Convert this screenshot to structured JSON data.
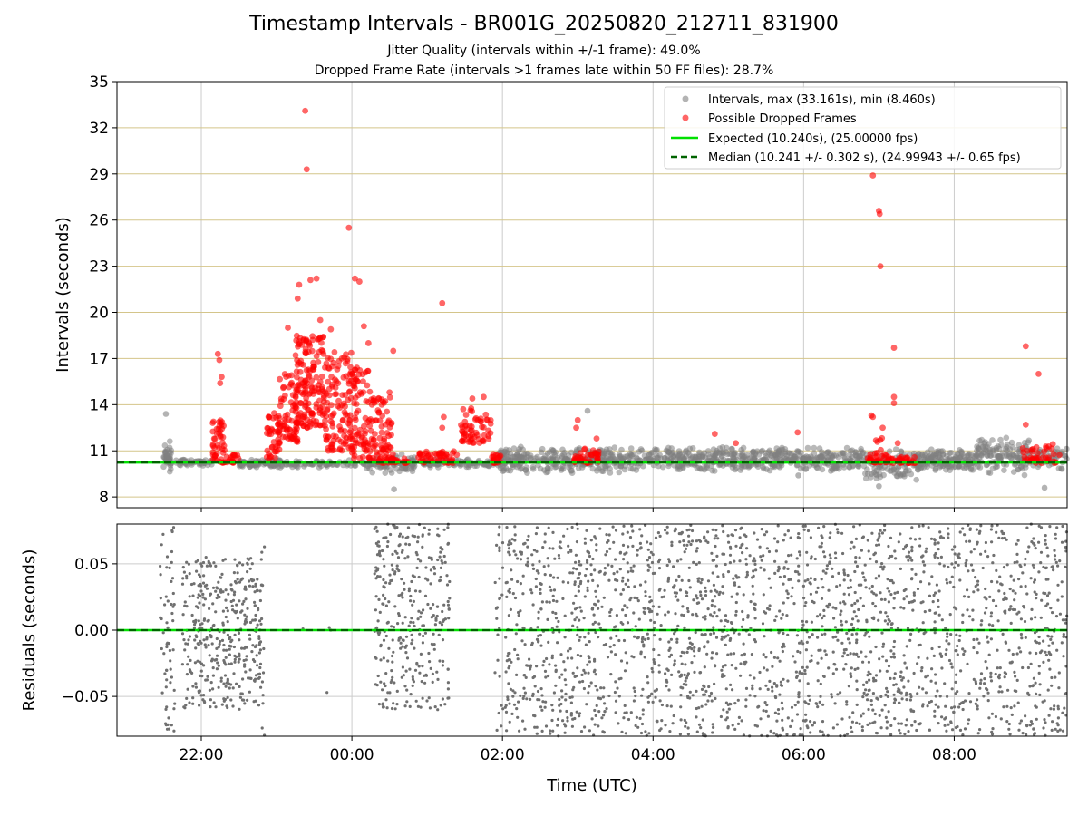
{
  "title": "Timestamp Intervals - BR001G_20250820_212711_831900",
  "subtitle_1": "Jitter Quality (intervals within +/-1 frame): 49.0%",
  "subtitle_2": "Dropped Frame Rate (intervals >1 frames late within 50 FF files): 28.7%",
  "colors": {
    "intervals": "#808080",
    "dropped": "#ff0000",
    "expected": "#00e000",
    "median": "#006400",
    "grid_top": "#d4c58a",
    "grid": "#cccccc",
    "residuals": "#707070"
  },
  "chart_data": [
    {
      "type": "scatter",
      "name": "intervals-panel",
      "ylabel": "Intervals (seconds)",
      "ylim": [
        7.3,
        35
      ],
      "yticks": [
        "8",
        "11",
        "14",
        "17",
        "20",
        "23",
        "26",
        "29",
        "32",
        "35"
      ],
      "x_unit": "hours after 00:00 UTC (negative = previous day)",
      "xlim": [
        -3.12,
        9.5
      ],
      "xticks": [
        "22:00",
        "00:00",
        "02:00",
        "04:00",
        "06:00",
        "08:00"
      ],
      "grid": "horizontal lines at y ticks, vertical lines at x ticks",
      "legend_position": "upper right",
      "legend": [
        "Intervals, max (33.161s), min (8.460s)",
        "Possible Dropped Frames",
        "Expected (10.240s), (25.00000 fps)",
        "Median (10.241 +/- 0.302 s), (24.99943 +/- 0.65 fps)"
      ],
      "lines": {
        "expected": 10.24,
        "median": 10.241
      },
      "dropped_points": [
        [
          -1.78,
          17.3
        ],
        [
          -1.76,
          16.9
        ],
        [
          -1.75,
          15.4
        ],
        [
          -1.73,
          15.8
        ],
        [
          -1.74,
          12.8
        ],
        [
          -0.62,
          33.1
        ],
        [
          -0.6,
          29.3
        ],
        [
          -0.55,
          22.1
        ],
        [
          -0.47,
          22.2
        ],
        [
          -0.7,
          21.8
        ],
        [
          -0.72,
          20.9
        ],
        [
          -0.42,
          19.5
        ],
        [
          -0.28,
          18.9
        ],
        [
          -0.04,
          25.5
        ],
        [
          0.04,
          22.2
        ],
        [
          0.1,
          22.0
        ],
        [
          0.16,
          19.1
        ],
        [
          0.22,
          18.0
        ],
        [
          0.55,
          17.5
        ],
        [
          0.5,
          14.8
        ],
        [
          -0.38,
          18.4
        ],
        [
          -0.85,
          19.0
        ],
        [
          1.2,
          20.6
        ],
        [
          1.22,
          13.2
        ],
        [
          1.2,
          12.5
        ],
        [
          1.6,
          14.4
        ],
        [
          1.75,
          14.5
        ],
        [
          3.0,
          13.0
        ],
        [
          2.98,
          12.5
        ],
        [
          3.25,
          11.8
        ],
        [
          4.82,
          12.1
        ],
        [
          5.1,
          11.5
        ],
        [
          5.92,
          12.2
        ],
        [
          6.92,
          28.9
        ],
        [
          7.0,
          26.6
        ],
        [
          7.01,
          26.4
        ],
        [
          7.02,
          23.0
        ],
        [
          7.2,
          17.7
        ],
        [
          7.2,
          14.5
        ],
        [
          7.2,
          14.1
        ],
        [
          6.9,
          13.3
        ],
        [
          6.92,
          13.2
        ],
        [
          7.05,
          12.5
        ],
        [
          7.25,
          11.5
        ],
        [
          8.95,
          17.8
        ],
        [
          9.12,
          16.0
        ],
        [
          8.95,
          12.7
        ]
      ],
      "dropped_clusters": [
        [
          -1.85,
          -1.68,
          10.2,
          13.0,
          45
        ],
        [
          -1.7,
          -1.5,
          10.2,
          10.8,
          20
        ],
        [
          -1.13,
          -0.95,
          10.5,
          13.5,
          40
        ],
        [
          -0.98,
          -0.72,
          11.5,
          16.0,
          70
        ],
        [
          -0.75,
          -0.35,
          12.5,
          18.5,
          160
        ],
        [
          -0.35,
          0.0,
          11.0,
          17.5,
          110
        ],
        [
          0.0,
          0.25,
          10.5,
          16.5,
          80
        ],
        [
          0.25,
          0.55,
          10.2,
          14.5,
          80
        ],
        [
          0.45,
          0.75,
          10.2,
          10.5,
          20
        ],
        [
          0.85,
          1.4,
          10.2,
          11.0,
          50
        ],
        [
          1.45,
          1.85,
          11.5,
          13.8,
          60
        ],
        [
          1.85,
          1.98,
          10.2,
          10.8,
          20
        ],
        [
          2.95,
          3.3,
          10.2,
          11.3,
          40
        ],
        [
          6.85,
          7.5,
          10.2,
          10.6,
          60
        ],
        [
          6.88,
          7.15,
          10.6,
          12.0,
          12
        ],
        [
          8.9,
          9.4,
          10.2,
          11.5,
          40
        ]
      ],
      "interval_clusters": [
        [
          -2.5,
          -2.4,
          9.2,
          11.9,
          40
        ],
        [
          -2.4,
          -1.85,
          10.0,
          10.5,
          50
        ],
        [
          -1.5,
          -0.95,
          9.9,
          10.5,
          90
        ],
        [
          -0.95,
          0.95,
          9.9,
          10.4,
          120
        ],
        [
          0.2,
          0.85,
          9.4,
          10.9,
          60
        ],
        [
          0.95,
          2.0,
          9.9,
          10.5,
          100
        ],
        [
          1.95,
          2.05,
          9.6,
          11.3,
          20
        ],
        [
          2.0,
          3.8,
          9.5,
          11.3,
          300
        ],
        [
          3.8,
          5.4,
          9.6,
          11.3,
          260
        ],
        [
          5.4,
          6.8,
          9.6,
          11.3,
          220
        ],
        [
          6.8,
          7.5,
          9.0,
          11.2,
          90
        ],
        [
          7.5,
          8.3,
          9.6,
          11.2,
          160
        ],
        [
          8.3,
          9.0,
          9.3,
          12.0,
          130
        ],
        [
          9.0,
          9.5,
          9.6,
          11.5,
          60
        ]
      ],
      "interval_points": [
        [
          0.56,
          8.5
        ],
        [
          7.0,
          8.7
        ],
        [
          9.2,
          8.6
        ],
        [
          3.13,
          13.6
        ],
        [
          -2.47,
          13.4
        ],
        [
          5.93,
          9.4
        ]
      ]
    },
    {
      "type": "scatter",
      "name": "residuals-panel",
      "ylabel": "Residuals (seconds)",
      "xlabel": "Time (UTC)",
      "ylim": [
        -0.08,
        0.08
      ],
      "yticks": [
        "0.05",
        "0.00",
        "−0.05"
      ],
      "ytick_values": [
        0.05,
        0.0,
        -0.05
      ],
      "xlim": [
        -3.12,
        9.5
      ],
      "xticks": [
        "22:00",
        "00:00",
        "02:00",
        "04:00",
        "06:00",
        "08:00"
      ],
      "xtick_values": [
        -2,
        0,
        2,
        4,
        6,
        8
      ],
      "grid": "on",
      "lines": {
        "expected": 0.0,
        "median": 0.0
      },
      "residual_clusters": [
        [
          -2.55,
          -2.35,
          -0.08,
          0.08,
          60
        ],
        [
          -2.25,
          -1.2,
          -0.06,
          0.055,
          400
        ],
        [
          -1.2,
          -1.15,
          -0.08,
          0.07,
          12
        ],
        [
          0.3,
          1.3,
          -0.06,
          0.08,
          330
        ],
        [
          1.9,
          2.05,
          -0.08,
          0.08,
          30
        ],
        [
          2.05,
          4.0,
          -0.08,
          0.08,
          600
        ],
        [
          4.0,
          6.0,
          -0.08,
          0.08,
          620
        ],
        [
          6.0,
          8.0,
          -0.08,
          0.08,
          620
        ],
        [
          8.0,
          9.5,
          -0.08,
          0.08,
          430
        ]
      ],
      "residual_points": [
        [
          -0.33,
          -0.047
        ],
        [
          -0.3,
          0.002
        ],
        [
          -0.28,
          0.0
        ],
        [
          -0.65,
          0.001
        ]
      ]
    }
  ]
}
